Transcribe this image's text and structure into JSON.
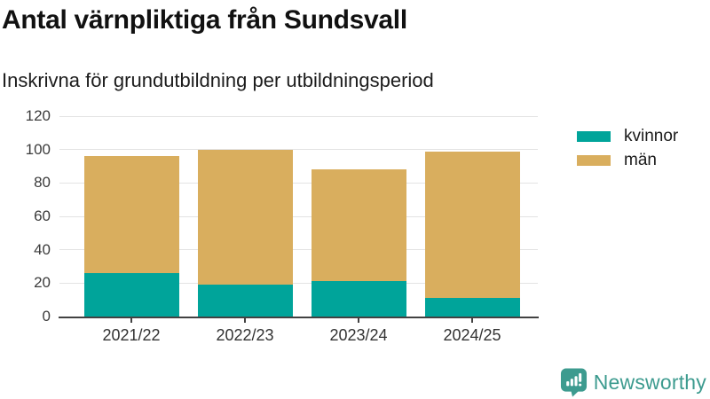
{
  "chart_data": {
    "type": "bar",
    "stacked": true,
    "title": "Antal värnpliktiga från Sundsvall",
    "subtitle": "Inskrivna för grundutbildning per utbildningsperiod",
    "categories": [
      "2021/22",
      "2022/23",
      "2023/24",
      "2024/25"
    ],
    "series": [
      {
        "name": "kvinnor",
        "color": "#00a49a",
        "values": [
          26,
          19,
          21,
          11
        ]
      },
      {
        "name": "män",
        "color": "#d9ae5e",
        "values": [
          70,
          81,
          67,
          88
        ]
      }
    ],
    "totals": [
      96,
      100,
      88,
      99
    ],
    "ylim": [
      0,
      120
    ],
    "yticks": [
      0,
      20,
      40,
      60,
      80,
      100,
      120
    ],
    "grid": true,
    "legend_position": "right",
    "colors": {
      "gridline": "#e3e3e3",
      "axis": "#424242",
      "tick_text": "#3c3c3c"
    }
  },
  "branding": {
    "logo_text": "Newsworthy",
    "logo_color": "#3d9b8f"
  }
}
